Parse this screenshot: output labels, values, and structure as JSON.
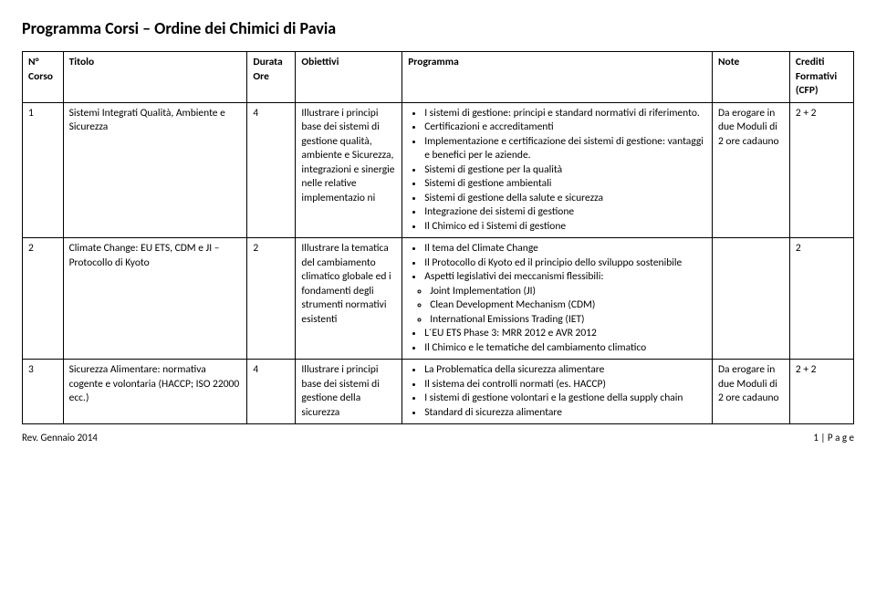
{
  "page_title": "Programma Corsi – Ordine dei Chimici di Pavia",
  "headers": {
    "n_corso": "N° Corso",
    "titolo": "Titolo",
    "durata": "Durata Ore",
    "obiettivi": "Obiettivi",
    "programma": "Programma",
    "note": "Note",
    "cfp": "Crediti Formativi (CFP)"
  },
  "rows": [
    {
      "n": "1",
      "titolo": "Sistemi Integrati Qualità, Ambiente e Sicurezza",
      "durata": "4",
      "obiettivi": "Illustrare i principi base dei sistemi di gestione qualità, ambiente e Sicurezza, integrazioni e sinergie nelle relative implementazio ni",
      "programma": [
        "I sistemi di gestione: principi e standard normativi di riferimento.",
        "Certificazioni e accreditamenti",
        "Implementazione e certificazione dei sistemi di gestione: vantaggi e benefici per le aziende.",
        "Sistemi di gestione per la qualità",
        "Sistemi di gestione ambientali",
        "Sistemi di gestione della salute e sicurezza",
        "Integrazione dei sistemi di gestione",
        "Il Chimico ed i Sistemi di gestione"
      ],
      "note": "Da erogare in due Moduli di 2 ore cadauno",
      "cfp": "2 + 2"
    },
    {
      "n": "2",
      "titolo": "Climate Change: EU ETS, CDM e JI – Protocollo di Kyoto",
      "durata": "2",
      "obiettivi": "Illustrare la tematica del cambiamento climatico globale ed i fondamenti degli strumenti normativi esistenti",
      "programma": [
        "Il tema del Climate Change",
        "Il Protocollo di Kyoto ed il principio dello sviluppo sostenibile",
        "Aspetti legislativi dei meccanismi flessibili:"
      ],
      "programma_sub": [
        "Joint Implementation (JI)",
        "Clean Development Mechanism (CDM)",
        "International Emissions Trading (IET)"
      ],
      "programma_after": [
        "L´EU ETS Phase 3: MRR 2012 e AVR 2012",
        "Il Chimico e le tematiche del cambiamento climatico"
      ],
      "note": "",
      "cfp": "2"
    },
    {
      "n": "3",
      "titolo": "Sicurezza Alimentare: normativa cogente e volontaria (HACCP; ISO 22000 ecc.)",
      "durata": "4",
      "obiettivi": "Illustrare i principi base dei sistemi di gestione della sicurezza",
      "programma": [
        "La Problematica della sicurezza alimentare",
        "Il sistema dei controlli normati (es. HACCP)",
        "I sistemi di gestione volontari e la gestione della supply chain",
        "Standard di sicurezza alimentare"
      ],
      "note": "Da erogare in due Moduli di 2 ore cadauno",
      "cfp": "2 + 2"
    }
  ],
  "footer": {
    "rev": "Rev. Gennaio 2014",
    "page": "1 | P a g e"
  }
}
